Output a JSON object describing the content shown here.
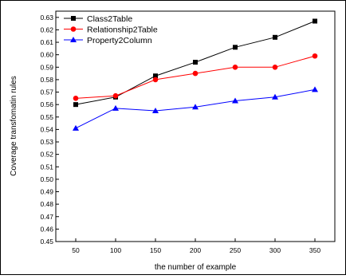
{
  "chart_data": {
    "type": "line",
    "title": "",
    "xlabel": "the number of example",
    "ylabel": "Coverage transfomatin rules",
    "categories": [
      "50",
      "100",
      "150",
      "200",
      "250",
      "300",
      "350"
    ],
    "x": [
      50,
      100,
      150,
      200,
      250,
      300,
      350
    ],
    "xlim": [
      25,
      375
    ],
    "ylim": [
      0.45,
      0.635
    ],
    "y_ticks": [
      "0.45",
      "0.46",
      "0.47",
      "0.48",
      "0.49",
      "0.50",
      "0.51",
      "0.52",
      "0.53",
      "0.54",
      "0.55",
      "0.56",
      "0.57",
      "0.58",
      "0.59",
      "0.60",
      "0.61",
      "0.62",
      "0.63"
    ],
    "grid": false,
    "legend_position": "top-left",
    "series": [
      {
        "name": "Class2Table",
        "color": "#000000",
        "marker": "square",
        "values": [
          0.56,
          0.566,
          0.583,
          0.594,
          0.606,
          0.614,
          0.627
        ]
      },
      {
        "name": "Relationship2Table",
        "color": "#ff0000",
        "marker": "circle",
        "values": [
          0.565,
          0.567,
          0.58,
          0.585,
          0.59,
          0.59,
          0.599
        ]
      },
      {
        "name": "Property2Column",
        "color": "#0000ff",
        "marker": "triangle",
        "values": [
          0.541,
          0.557,
          0.555,
          0.558,
          0.563,
          0.566,
          0.572
        ]
      }
    ]
  }
}
